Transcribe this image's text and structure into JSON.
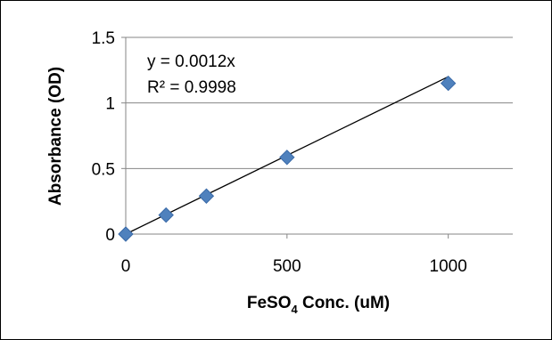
{
  "chart_data": {
    "type": "scatter",
    "title": "",
    "xlabel": "FeSO4 Conc. (uM)",
    "xlabel_parts": {
      "main": "FeSO",
      "sub": "4",
      "rest": " Conc. (uM)"
    },
    "ylabel": "Absorbance (OD)",
    "xlim": [
      0,
      1200
    ],
    "ylim": [
      0,
      1.5
    ],
    "x_ticks": [
      0,
      500,
      1000
    ],
    "y_ticks": [
      0,
      0.5,
      1,
      1.5
    ],
    "x_tick_labels": [
      "0",
      "500",
      "1000"
    ],
    "y_tick_labels": [
      "0",
      "0.5",
      "1",
      "1.5"
    ],
    "grid": "horizontal",
    "legend": "none",
    "series": [
      {
        "marker": "diamond",
        "color": "#4f81bd",
        "x": [
          0,
          125,
          250,
          500,
          1000
        ],
        "y": [
          0,
          0.145,
          0.29,
          0.585,
          1.15
        ]
      }
    ],
    "trendline": {
      "type": "linear",
      "slope": 0.0012,
      "intercept": 0,
      "x_range": [
        0,
        1000
      ],
      "color": "#000000",
      "equation": "y = 0.0012x",
      "r_squared": "R² = 0.9998"
    }
  }
}
